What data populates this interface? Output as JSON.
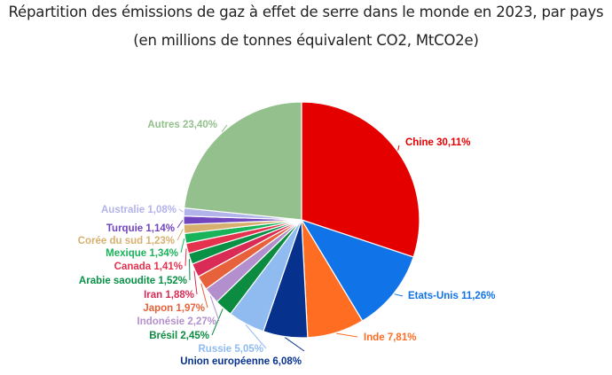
{
  "chart_data": {
    "type": "pie",
    "title": "Répartition des émissions de gaz à effet de serre dans le monde en 2023, par pays",
    "subtitle": "(en millions de tonnes équivalent CO2, MtCO2e)",
    "slices": [
      {
        "label": "Chine",
        "value": 30.11,
        "display": "Chine 30,11%",
        "color": "#e50000"
      },
      {
        "label": "Etats-Unis",
        "value": 11.26,
        "display": "Etats-Unis 11,26%",
        "color": "#1173e8"
      },
      {
        "label": "Inde",
        "value": 7.81,
        "display": "Inde 7,81%",
        "color": "#ff6d22"
      },
      {
        "label": "Union européenne",
        "value": 6.08,
        "display": "Union européenne 6,08%",
        "color": "#06328e"
      },
      {
        "label": "Russie",
        "value": 5.05,
        "display": "Russie 5,05%",
        "color": "#8fbbf1"
      },
      {
        "label": "Brésil",
        "value": 2.45,
        "display": "Brésil 2,45%",
        "color": "#0c8c40"
      },
      {
        "label": "Indonésie",
        "value": 2.27,
        "display": "Indonésie 2,27%",
        "color": "#b390cd"
      },
      {
        "label": "Japon",
        "value": 1.97,
        "display": "Japon 1,97%",
        "color": "#e7623a"
      },
      {
        "label": "Iran",
        "value": 1.88,
        "display": "Iran 1,88%",
        "color": "#d92b55"
      },
      {
        "label": "Arabie saoudite",
        "value": 1.52,
        "display": "Arabie saoudite 1,52%",
        "color": "#099146"
      },
      {
        "label": "Canada",
        "value": 1.41,
        "display": "Canada 1,41%",
        "color": "#e5324e"
      },
      {
        "label": "Mexique",
        "value": 1.34,
        "display": "Mexique 1,34%",
        "color": "#19b45a"
      },
      {
        "label": "Corée du sud",
        "value": 1.23,
        "display": "Corée du sud 1,23%",
        "color": "#d7b06f"
      },
      {
        "label": "Turquie",
        "value": 1.14,
        "display": "Turquie 1,14%",
        "color": "#7145be"
      },
      {
        "label": "Australie",
        "value": 1.08,
        "display": "Australie 1,08%",
        "color": "#b3b3ec"
      },
      {
        "label": "Autres",
        "value": 23.4,
        "display": "Autres 23,40%",
        "color": "#93c08c"
      }
    ]
  }
}
